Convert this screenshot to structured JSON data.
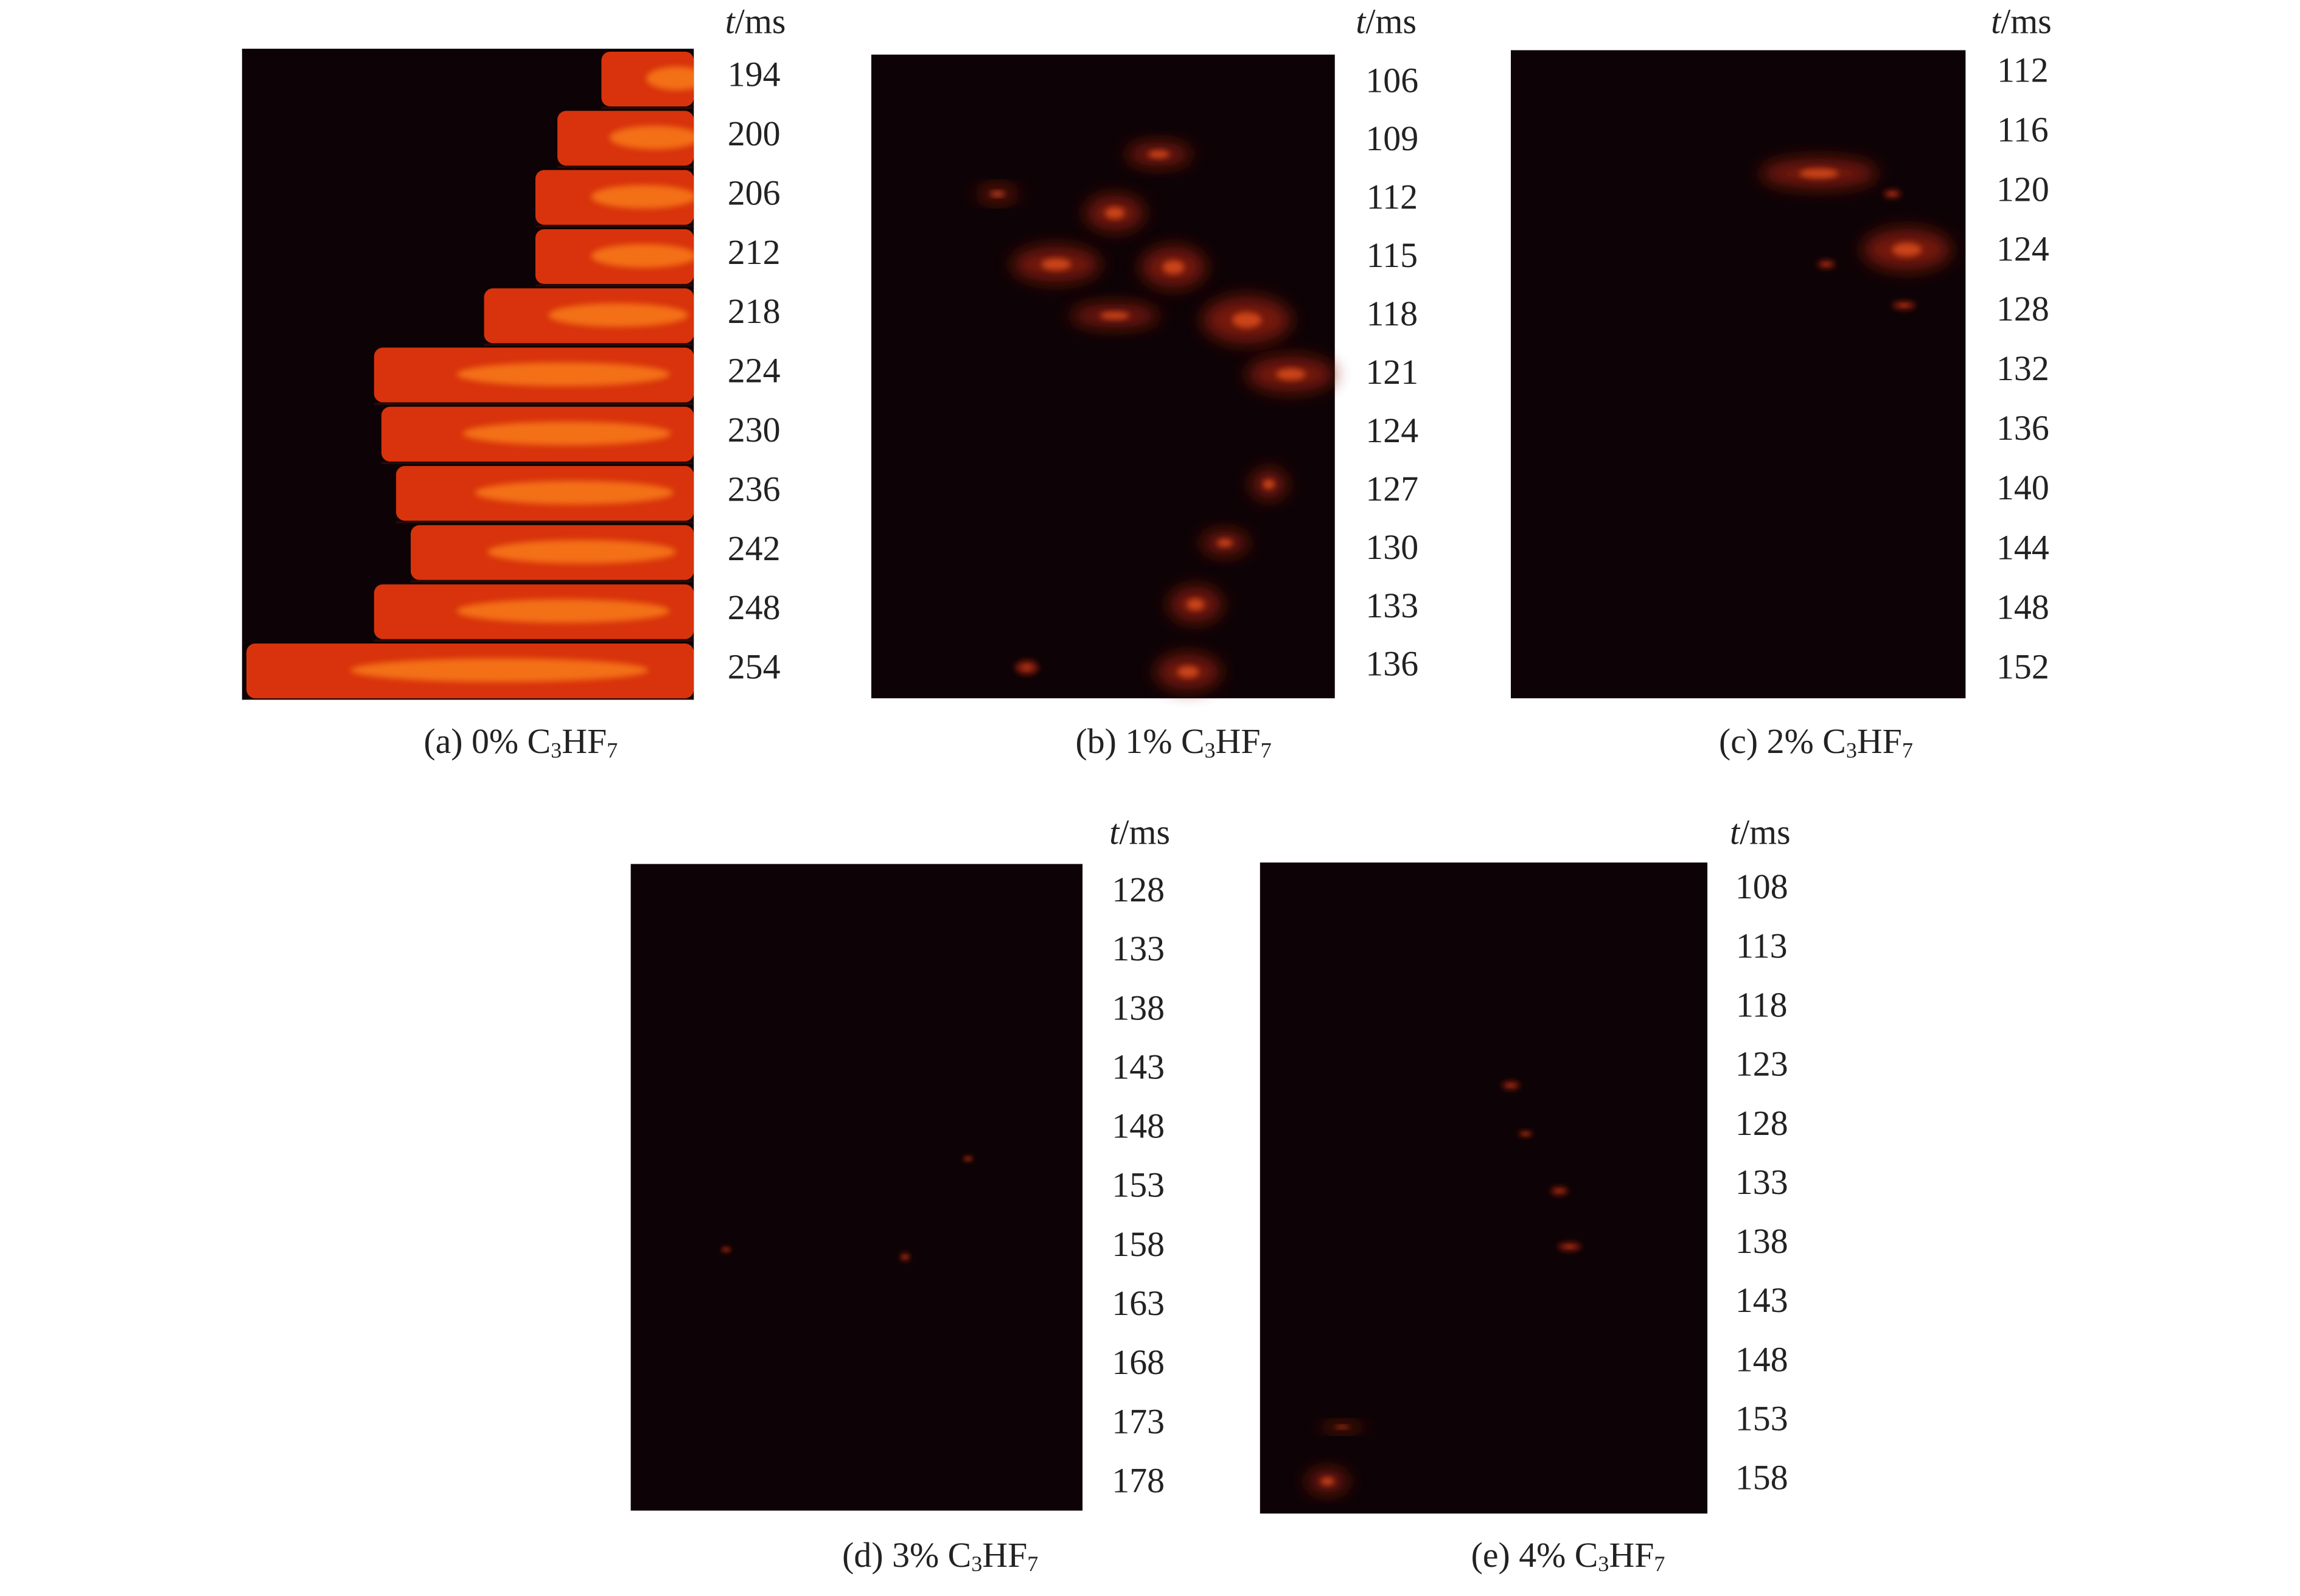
{
  "panels": [
    {
      "caption": [
        "(a) 0% C",
        "3",
        "HF",
        "7"
      ],
      "time_label": [
        "t",
        "/ms"
      ],
      "times": [
        194,
        200,
        206,
        212,
        218,
        224,
        230,
        236,
        242,
        248,
        254
      ]
    },
    {
      "caption": [
        "(b) 1% C",
        "3",
        "HF",
        "7"
      ],
      "time_label": [
        "t",
        "/ms"
      ],
      "times": [
        106,
        109,
        112,
        115,
        118,
        121,
        124,
        127,
        130,
        133,
        136
      ]
    },
    {
      "caption": [
        "(c) 2% C",
        "3",
        "HF",
        "7"
      ],
      "time_label": [
        "t",
        "/ms"
      ],
      "times": [
        112,
        116,
        120,
        124,
        128,
        132,
        136,
        140,
        144,
        148,
        152
      ]
    },
    {
      "caption": [
        "(d) 3% C",
        "3",
        "HF",
        "7"
      ],
      "time_label": [
        "t",
        "/ms"
      ],
      "times": [
        128,
        133,
        138,
        143,
        148,
        153,
        158,
        163,
        168,
        173,
        178
      ]
    },
    {
      "caption": [
        "(e) 4% C",
        "3",
        "HF",
        "7"
      ],
      "time_label": [
        "t",
        "/ms"
      ],
      "times": [
        108,
        113,
        118,
        123,
        128,
        133,
        138,
        143,
        148,
        153,
        158
      ]
    }
  ]
}
